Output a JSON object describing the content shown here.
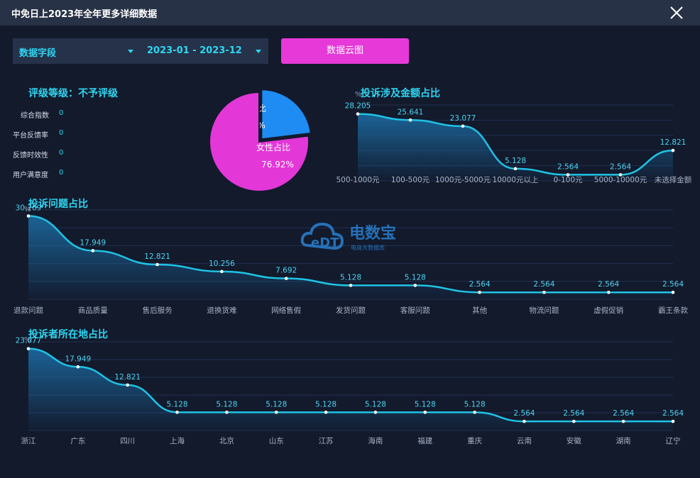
{
  "window": {
    "title": "中免日上2023年全年更多详细数据"
  },
  "filters": {
    "field_label": "数据字段",
    "date_range": "2023-01 - 2023-12",
    "cloud_button": "数据云图"
  },
  "rating": {
    "title": "评级等级：不予评级",
    "metrics": [
      {
        "label": "综合指数",
        "value": "0"
      },
      {
        "label": "平台反馈率",
        "value": "0"
      },
      {
        "label": "反馈时效性",
        "value": "0"
      },
      {
        "label": "用户满意度",
        "value": "0"
      }
    ]
  },
  "watermark": {
    "brand": "电数宝",
    "subtitle": "电商大数据库",
    "logo_text": "eDT"
  },
  "chart_data": [
    {
      "type": "pie",
      "labels": [
        "男性占比",
        "女性占比"
      ],
      "values": [
        23.08,
        76.92
      ],
      "value_labels": [
        "23.08%",
        "76.92%"
      ],
      "colors": [
        "#1e8cf2",
        "#e337d8"
      ]
    },
    {
      "type": "area",
      "title": "投诉涉及金额占比",
      "ylabel": "%",
      "categories": [
        "500-1000元",
        "100-500元",
        "1000元-5000元",
        "10000元以上",
        "0-100元",
        "5000-10000元",
        "未选择金额"
      ],
      "values": [
        28.205,
        25.641,
        23.077,
        5.128,
        2.564,
        2.564,
        12.821
      ]
    },
    {
      "type": "area",
      "title": "投诉问题占比",
      "ylabel": "%",
      "categories": [
        "退款问题",
        "商品质量",
        "售后服务",
        "退换货难",
        "网络售假",
        "发货问题",
        "客服问题",
        "其他",
        "物流问题",
        "虚假促销",
        "霸王条款"
      ],
      "values": [
        30.769,
        17.949,
        12.821,
        10.256,
        7.692,
        5.128,
        5.128,
        2.564,
        2.564,
        2.564,
        2.564
      ]
    },
    {
      "type": "area",
      "title": "投诉者所在地占比",
      "ylabel": "%",
      "categories": [
        "浙江",
        "广东",
        "四川",
        "上海",
        "北京",
        "山东",
        "江苏",
        "海南",
        "福建",
        "重庆",
        "云南",
        "安徽",
        "湖南",
        "辽宁"
      ],
      "values": [
        23.077,
        17.949,
        12.821,
        5.128,
        5.128,
        5.128,
        5.128,
        5.128,
        5.128,
        5.128,
        2.564,
        2.564,
        2.564,
        2.564
      ]
    }
  ]
}
